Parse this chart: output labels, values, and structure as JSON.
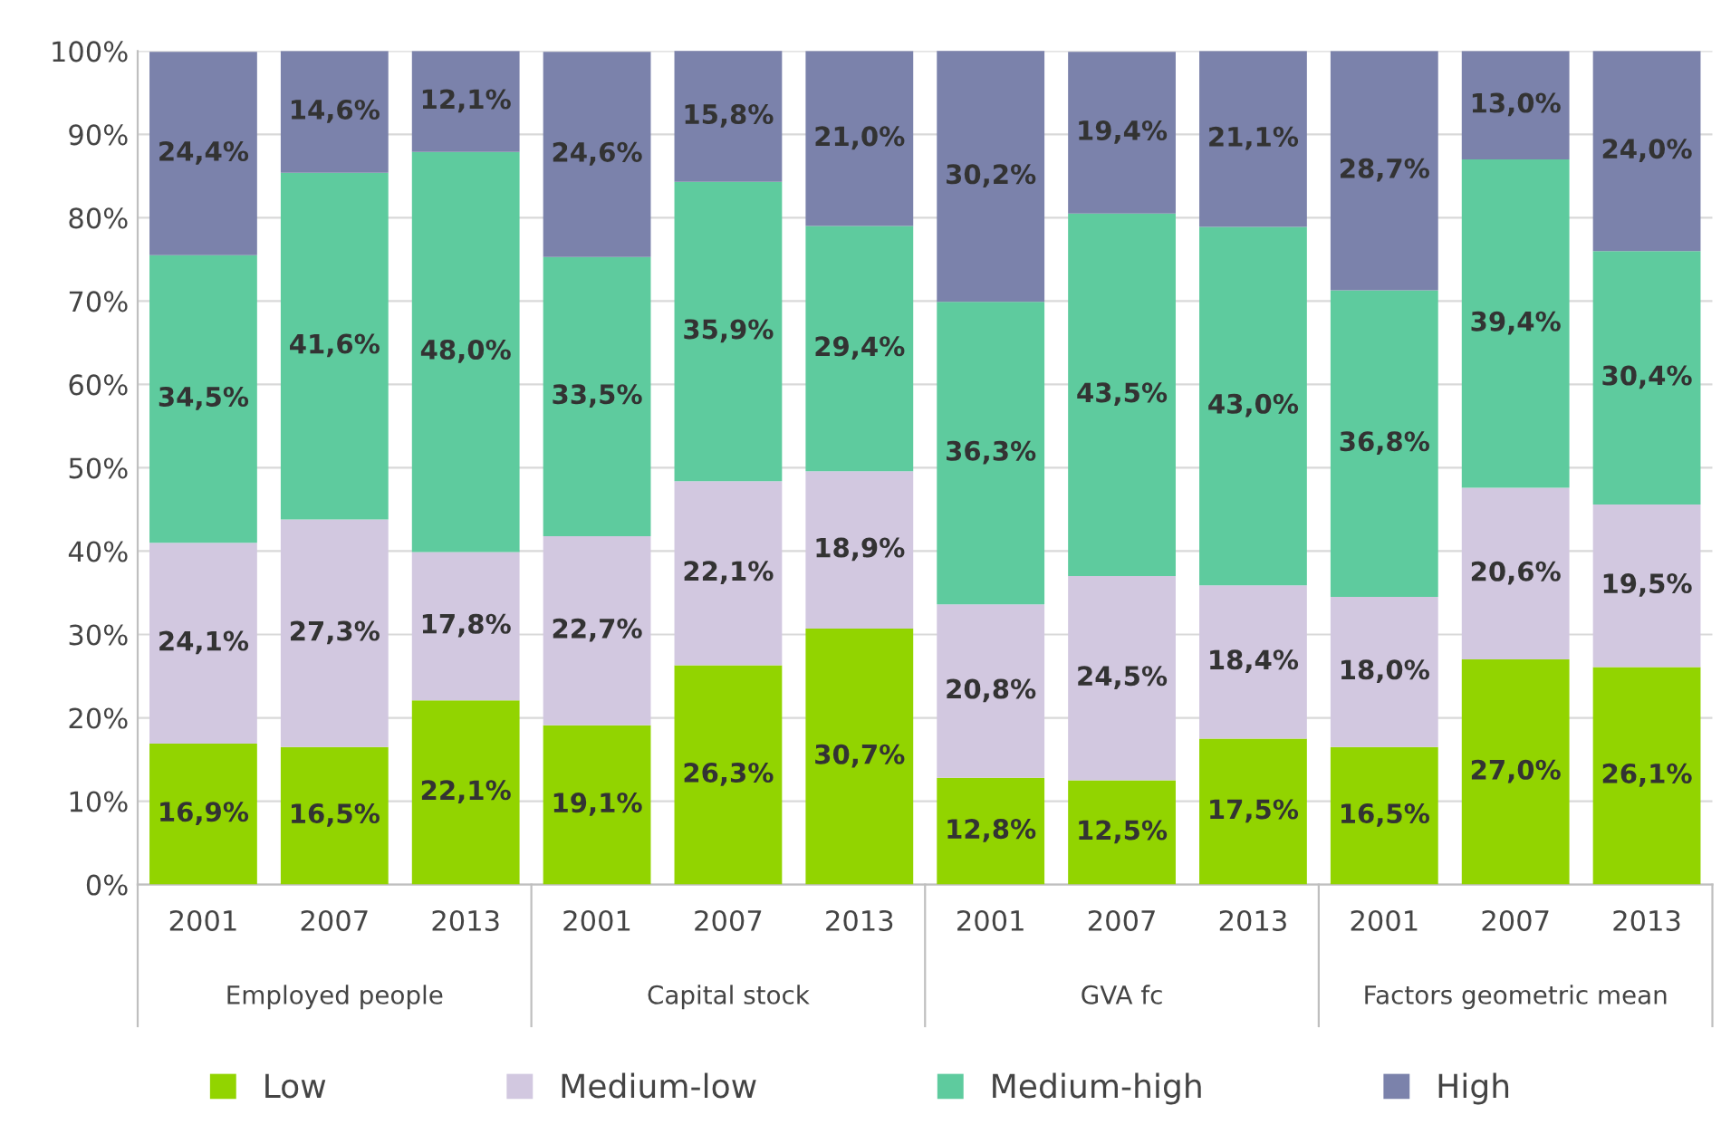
{
  "chart_data": {
    "type": "bar",
    "stacked": true,
    "categories": [
      "2001",
      "2007",
      "2013",
      "2001",
      "2007",
      "2013",
      "2001",
      "2007",
      "2013",
      "2001",
      "2007",
      "2013"
    ],
    "annotations": [
      "Employed people",
      "Capital stock",
      "GVA fc",
      "Factors geometric mean"
    ],
    "series": [
      {
        "name": "Low",
        "color": "#92d400",
        "values": [
          16.9,
          16.5,
          22.1,
          19.1,
          26.3,
          30.7,
          12.8,
          12.5,
          17.5,
          16.5,
          27.0,
          26.1
        ],
        "value_labels": [
          "16,9%",
          "16,5%",
          "22,1%",
          "19,1%",
          "26,3%",
          "30,7%",
          "12,8%",
          "12,5%",
          "17,5%",
          "16,5%",
          "27,0%",
          "26,1%"
        ]
      },
      {
        "name": "Medium-low",
        "color": "#d2c8e0",
        "values": [
          24.1,
          27.3,
          17.8,
          22.7,
          22.1,
          18.9,
          20.8,
          24.5,
          18.4,
          18.0,
          20.6,
          19.5
        ],
        "value_labels": [
          "24,1%",
          "27,3%",
          "17,8%",
          "22,7%",
          "22,1%",
          "18,9%",
          "20,8%",
          "24,5%",
          "18,4%",
          "18,0%",
          "20,6%",
          "19,5%"
        ]
      },
      {
        "name": "Medium-high",
        "color": "#5ecb9e",
        "values": [
          34.5,
          41.6,
          48.0,
          33.5,
          35.9,
          29.4,
          36.3,
          43.5,
          43.0,
          36.8,
          39.4,
          30.4
        ],
        "value_labels": [
          "34,5%",
          "41,6%",
          "48,0%",
          "33,5%",
          "35,9%",
          "29,4%",
          "36,3%",
          "43,5%",
          "43,0%",
          "36,8%",
          "39,4%",
          "30,4%"
        ]
      },
      {
        "name": "High",
        "color": "#7b82ab",
        "values": [
          24.4,
          14.6,
          12.1,
          24.6,
          15.8,
          21.0,
          30.2,
          19.4,
          21.1,
          28.7,
          13.0,
          24.0
        ],
        "value_labels": [
          "24,4%",
          "14,6%",
          "12,1%",
          "24,6%",
          "15,8%",
          "21,0%",
          "30,2%",
          "19,4%",
          "21,1%",
          "28,7%",
          "13,0%",
          "24,0%"
        ]
      }
    ],
    "ylim": [
      0,
      100
    ],
    "yticks": [
      {
        "value": 0,
        "label": "0%"
      },
      {
        "value": 10,
        "label": "10%"
      },
      {
        "value": 20,
        "label": "20%"
      },
      {
        "value": 30,
        "label": "30%"
      },
      {
        "value": 40,
        "label": "40%"
      },
      {
        "value": 50,
        "label": "50%"
      },
      {
        "value": 60,
        "label": "60%"
      },
      {
        "value": 70,
        "label": "70%"
      },
      {
        "value": 80,
        "label": "80%"
      },
      {
        "value": 90,
        "label": "90%"
      },
      {
        "value": 100,
        "label": "100%"
      }
    ],
    "grid": "y",
    "legend": "bottom"
  }
}
